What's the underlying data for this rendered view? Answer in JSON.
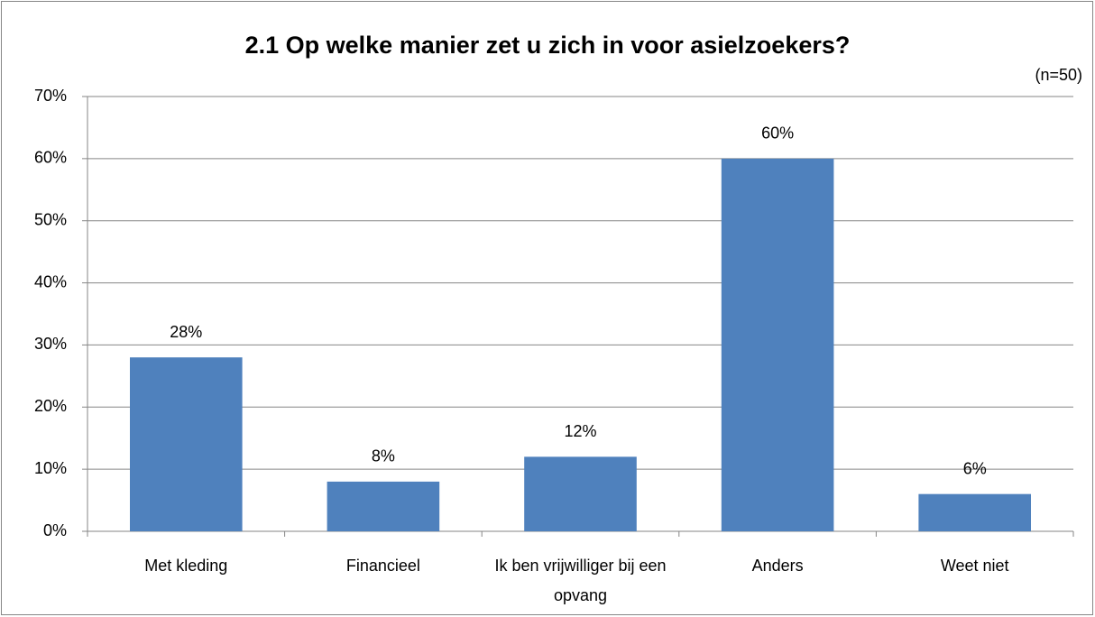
{
  "chart_data": {
    "type": "bar",
    "title": "2.1 Op welke manier zet u zich in voor asielzoekers?",
    "annotation": "(n=50)",
    "categories": [
      "Met kleding",
      "Financieel",
      "Ik ben vrijwilliger bij een opvang",
      "Anders",
      "Weet niet"
    ],
    "values": [
      28,
      8,
      12,
      60,
      6
    ],
    "value_labels": [
      "28%",
      "8%",
      "12%",
      "60%",
      "6%"
    ],
    "color": "#4f81bd",
    "ylim": [
      0,
      70
    ],
    "yticks": [
      {
        "value": 0,
        "label": "0%"
      },
      {
        "value": 10,
        "label": "10%"
      },
      {
        "value": 20,
        "label": "20%"
      },
      {
        "value": 30,
        "label": "30%"
      },
      {
        "value": 40,
        "label": "40%"
      },
      {
        "value": 50,
        "label": "50%"
      },
      {
        "value": 60,
        "label": "60%"
      },
      {
        "value": 70,
        "label": "70%"
      }
    ],
    "grid": true
  }
}
